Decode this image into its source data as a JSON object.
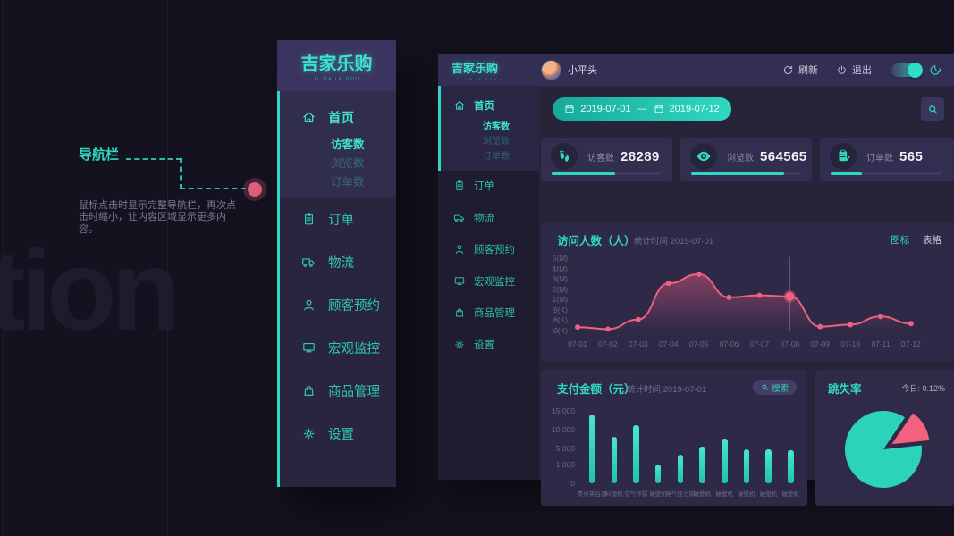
{
  "page": {
    "watermark": "tion"
  },
  "annotation": {
    "title": "导航栏",
    "body": "鼠标点击时显示完整导航栏，再次点击时缩小，让内容区域显示更多内容。"
  },
  "brand": {
    "name": "吉家乐购",
    "tagline": "· JI JIA LE GOU ·"
  },
  "menu": {
    "home": {
      "label": "首页",
      "icon": "home",
      "sub": [
        {
          "label": "访客数",
          "active": true
        },
        {
          "label": "浏览数",
          "active": false
        },
        {
          "label": "订单数",
          "active": false
        }
      ]
    },
    "items": [
      {
        "label": "订单",
        "icon": "clipboard"
      },
      {
        "label": "物流",
        "icon": "truck"
      },
      {
        "label": "顾客预约",
        "icon": "person"
      },
      {
        "label": "宏观监控",
        "icon": "monitor"
      },
      {
        "label": "商品管理",
        "icon": "bag"
      },
      {
        "label": "设置",
        "icon": "gear"
      }
    ]
  },
  "header": {
    "username": "小平头",
    "refresh_label": "刷新",
    "refresh_icon": "refresh-icon",
    "logout_label": "退出",
    "logout_icon": "power-icon",
    "theme_icon": "moon-icon",
    "toggle_state": "on"
  },
  "toolbar": {
    "date_start": "2019-07-01",
    "date_end": "2019-07-12",
    "range_separator": "—",
    "calendar_icon": "calendar-icon",
    "search_icon": "search-icon"
  },
  "stats": [
    {
      "icon": "footprints",
      "label": "访客数",
      "value": "28289",
      "progress": 0.58
    },
    {
      "icon": "eye",
      "label": "浏览数",
      "value": "564565",
      "progress": 0.85
    },
    {
      "icon": "orders",
      "label": "订单数",
      "value": "565",
      "progress": 0.28
    }
  ],
  "colors": {
    "accent_teal": "#2fd9c0",
    "pink": "#ee6180",
    "page_bg": "#14121f",
    "panel_bg": "#272339",
    "card_bg": "#2d2947",
    "header_bg": "#332f54"
  },
  "chart_data": [
    {
      "type": "area",
      "title": "访问人数（人）",
      "subtitle": "统计时间 2019-07-01",
      "view_toggle": [
        "图标",
        "表格"
      ],
      "legend_position": "none",
      "grid": false,
      "x": [
        "07-01",
        "07-02",
        "07-03",
        "07-04",
        "07-05",
        "07-06",
        "07-07",
        "07-08",
        "07-09",
        "07-10",
        "07-11",
        "07-12"
      ],
      "y_tick_labels_top_to_bottom": [
        "5(M)",
        "4(M)",
        "3(M)",
        "2(M)",
        "1(M)",
        "9(K)",
        "6(K)",
        "0(K)"
      ],
      "grid_unit_max": 7,
      "values_grid_units": [
        0.25,
        0.05,
        1.0,
        4.6,
        5.5,
        3.2,
        3.4,
        3.3,
        0.3,
        0.5,
        1.3,
        0.6
      ],
      "values_approx": [
        2000,
        500,
        6000,
        2600000,
        3500000,
        1200000,
        1400000,
        1300000,
        2500,
        4500,
        7000,
        5000
      ],
      "marker_index": 7,
      "line_color": "#ee6180"
    },
    {
      "type": "bar",
      "title": "支付金额（元）",
      "subtitle": "统计时间 2019-07-01",
      "search_label": "搜索",
      "grid": false,
      "categories": [
        "贵州茅台酒",
        "料理机",
        "空气炸锅",
        "破壁机",
        "电气压力锅",
        "破壁机",
        "破壁机",
        "破壁机",
        "破壁机",
        "破壁机"
      ],
      "values": [
        14000,
        8300,
        11300,
        1200,
        3700,
        5800,
        7900,
        5000,
        5000,
        4800
      ],
      "heights_norm": [
        0.95,
        0.64,
        0.8,
        0.26,
        0.4,
        0.51,
        0.62,
        0.47,
        0.47,
        0.46
      ],
      "y_ticks": [
        {
          "label": "15,000",
          "pos": 0.0
        },
        {
          "label": "10,000",
          "pos": 0.27
        },
        {
          "label": "5,000",
          "pos": 0.53
        },
        {
          "label": "1,000",
          "pos": 0.75
        },
        {
          "label": "0",
          "pos": 1.0
        }
      ],
      "bar_color": "#2fd9c0"
    },
    {
      "type": "pie",
      "title": "跳失率",
      "today_label": "今日: 0.12%",
      "slices": [
        {
          "value": 86,
          "color": "#2bd3ba",
          "exploded": false
        },
        {
          "value": 14,
          "color": "#f2617d",
          "exploded": true
        }
      ],
      "start_angle_deg": 6,
      "slice_angle_deg": 50
    }
  ]
}
